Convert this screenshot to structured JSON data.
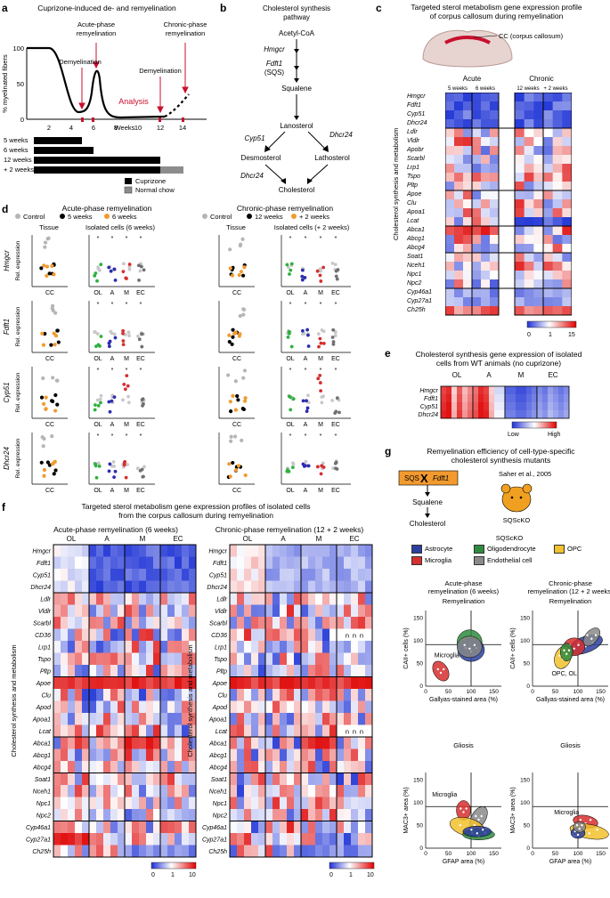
{
  "panels": {
    "a": {
      "label": "a",
      "title": "Cuprizone-induced de- and remyelination",
      "ylabel": "% myelinated fibers",
      "xlabel": "Weeks",
      "yticks": [
        "0",
        "50",
        "100"
      ],
      "xticks": [
        "2",
        "4",
        "6",
        "8",
        "10",
        "12",
        "14"
      ],
      "annotations": {
        "acute": "Acute-phase\nremyelination",
        "demy1": "Demyelination",
        "demy2": "Demyelination",
        "chronic": "Chronic-phase\nremyelination",
        "analysis": "Analysis"
      },
      "bars": [
        {
          "label": "5 weeks",
          "weeks": 5
        },
        {
          "label": "6 weeks",
          "weeks": 6
        },
        {
          "label": "12 weeks",
          "weeks": 12
        },
        {
          "label": "+ 2 weeks",
          "weeks": 12,
          "extra": 2
        }
      ],
      "legend": [
        {
          "label": "Cuprizone",
          "color": "#000000"
        },
        {
          "label": "Normal chow",
          "color": "#8c8c8c"
        }
      ]
    },
    "b": {
      "label": "b",
      "title": "Cholesterol synthesis\npathway",
      "nodes": {
        "acetyl": "Acetyl-CoA",
        "hmgcr": "Hmgcr",
        "fdft1": "Fdft1",
        "sqs": "(SQS)",
        "squalene": "Squalene",
        "lanosterol": "Lanosterol",
        "cyp51": "Cyp51",
        "dhcr24a": "Dhcr24",
        "desmosterol": "Desmosterol",
        "lathosterol": "Lathosterol",
        "dhcr24b": "Dhcr24",
        "cholesterol": "Cholesterol"
      }
    },
    "c": {
      "label": "c",
      "title": "Targeted sterol metabolism gene expression profile\nof corpus callosum during remyelination",
      "cc_label": "CC (corpus callosum)",
      "acute": "Acute",
      "chronic": "Chronic",
      "cols": [
        "5 weeks",
        "6 weeks",
        "12 weeks",
        "+ 2 weeks"
      ],
      "side": "Cholesterol synthesis and metabolism",
      "genes": [
        "Hmgcr",
        "Fdft1",
        "Cyp51",
        "Dhcr24",
        "Ldlr",
        "Vldlr",
        "Apobr",
        "Scarbl",
        "Lrp1",
        "Tspo",
        "Pltp",
        "Apoe",
        "Clu",
        "Apoa1",
        "Lcat",
        "Abca1",
        "Abcg1",
        "Abcg4",
        "Soat1",
        "Nceh1",
        "Npc1",
        "Npc2",
        "Cyp46a1",
        "Cyp27a1",
        "Ch25h"
      ],
      "scale": [
        "0",
        "1",
        "15"
      ]
    },
    "d": {
      "label": "d",
      "acute_title": "Acute-phase remyelination",
      "chronic_title": "Chronic-phase remyelination",
      "legend_acute": [
        "Control",
        "5 weeks",
        "6 weeks"
      ],
      "legend_chronic": [
        "Control",
        "12 weeks",
        "+ 2 weeks"
      ],
      "tissue": "Tissue",
      "isolated_acute": "Isolated cells (6 weeks)",
      "isolated_chronic": "Isolated cells (+ 2 weeks)",
      "ylabel": "Rel. expression",
      "genes": [
        "Hmgcr",
        "Fdft1",
        "Cyp51",
        "Dhcr24"
      ],
      "cc": "CC",
      "cells": [
        "OL",
        "A",
        "M",
        "EC"
      ]
    },
    "e": {
      "label": "e",
      "title": "Cholesterol synthesis gene expression of isolated\ncells from WT animals (no cuprizone)",
      "groups": [
        "OL",
        "A",
        "M",
        "EC"
      ],
      "genes": [
        "Hmgcr",
        "Fdft1",
        "Cyp51",
        "Dhcr24"
      ],
      "scale": [
        "Low",
        "High"
      ]
    },
    "f": {
      "label": "f",
      "title": "Targeted sterol metabolism gene expression profiles of isolated cells\nfrom the corpus callosum during remyelination",
      "acute": "Acute-phase remyelination (6 weeks)",
      "chronic": "Chronic-phase remyelination (12 + 2 weeks)",
      "groups": [
        "OL",
        "A",
        "M",
        "EC"
      ],
      "side": "Cholesterol synthesis and metabolism",
      "genes": [
        "Hmgcr",
        "Fdft1",
        "Cyp51",
        "Dhcr24",
        "Ldlr",
        "Vldlr",
        "Scarbl",
        "CD36",
        "Lrp1",
        "Tspo",
        "Pltp",
        "Apoe",
        "Clu",
        "Apod",
        "Apoa1",
        "Lcat",
        "Abca1",
        "Abcg1",
        "Abcg4",
        "Soat1",
        "Nceh1",
        "Npc1",
        "Npc2",
        "Cyp46a1",
        "Cyp27a1",
        "Ch25h"
      ],
      "scale": [
        "0",
        "1",
        "10"
      ],
      "na": "n"
    },
    "g": {
      "label": "g",
      "title": "Remyelination efficiency of cell-type-specific\ncholesterol synthesis mutants",
      "sqs": "SQS",
      "fdft1": "Fdft1",
      "squalene": "Squalene",
      "cholesterol": "Cholesterol",
      "ref": "Saher et al., 2005",
      "mouse": "SQScKO",
      "legend_title": "SQScKO",
      "legend": [
        {
          "label": "Astrocyte",
          "color": "#2b3f9e"
        },
        {
          "label": "Oligodendrocyte",
          "color": "#2e8b3e"
        },
        {
          "label": "OPC",
          "color": "#f2c12e"
        },
        {
          "label": "Microglia",
          "color": "#d62f2f"
        },
        {
          "label": "Endothelial cell",
          "color": "#8a8a8a"
        }
      ],
      "acute": "Acute-phase\nremyelination (6 weeks)",
      "chronic": "Chronic-phase\nremyelination (12 + 2 weeks)",
      "remy": "Remyelination",
      "gliosis": "Gliosis",
      "y1": "CAII+ cells (%)",
      "x1": "Gallyas-stained area (%)",
      "y2": "MAC3+ area (%)",
      "x2": "GFAP area (%)",
      "lab_micro": "Microglia",
      "lab_opc": "OPC, OL",
      "ticks": [
        "0",
        "50",
        "100",
        "150"
      ]
    }
  }
}
